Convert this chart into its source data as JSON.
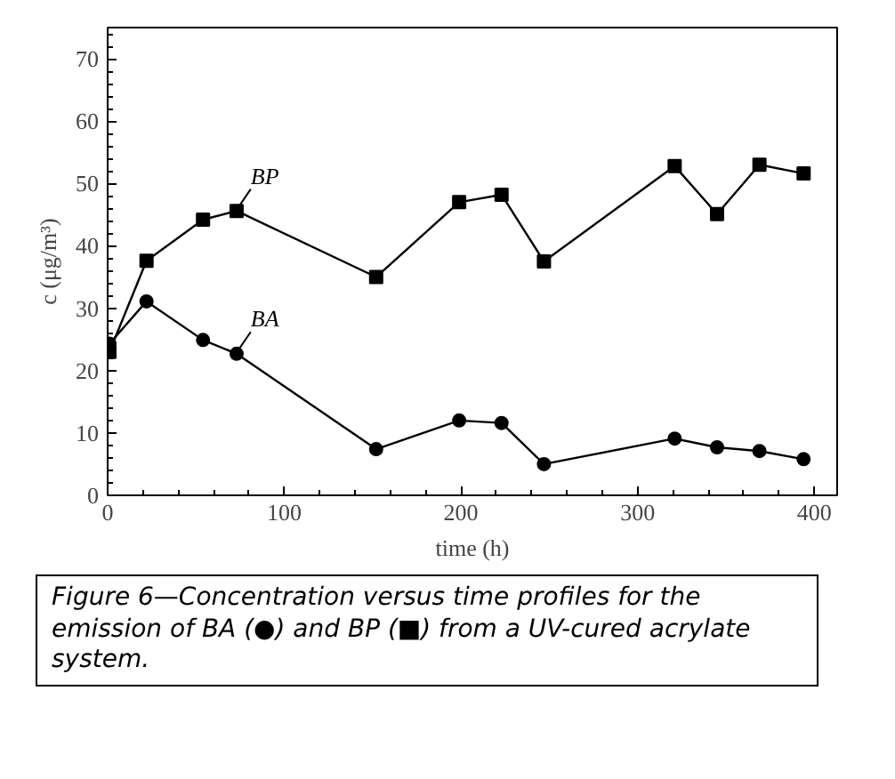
{
  "chart_data": {
    "type": "line",
    "xlabel": "time (h)",
    "ylabel": "c (μg/m³)",
    "xlim": [
      0,
      413
    ],
    "ylim": [
      0,
      75
    ],
    "xticks": [
      0,
      100,
      200,
      300,
      400
    ],
    "yticks": [
      0,
      10,
      20,
      30,
      40,
      50,
      60,
      70
    ],
    "grid": false,
    "line_style": "solid",
    "series": [
      {
        "name": "BP",
        "color": "#000000",
        "marker": "square",
        "x": [
          1,
          22,
          54,
          73,
          152,
          199,
          223,
          247,
          321,
          345,
          369,
          394
        ],
        "values": [
          23,
          37.6,
          44.2,
          45.6,
          35,
          47,
          48.2,
          37.5,
          52.8,
          45.1,
          53,
          51.6
        ]
      },
      {
        "name": "BA",
        "color": "#000000",
        "marker": "circle",
        "x": [
          1,
          22,
          54,
          73,
          152,
          199,
          223,
          247,
          321,
          345,
          369,
          394
        ],
        "values": [
          24.3,
          31.1,
          24.9,
          22.7,
          7.4,
          12,
          11.6,
          5,
          9.1,
          7.7,
          7.1,
          5.8
        ]
      }
    ],
    "annotations": [
      "Figure 6—Concentration versus time profiles for the emission of BA (●) and BP (■) from a UV-cured acrylate system."
    ]
  }
}
